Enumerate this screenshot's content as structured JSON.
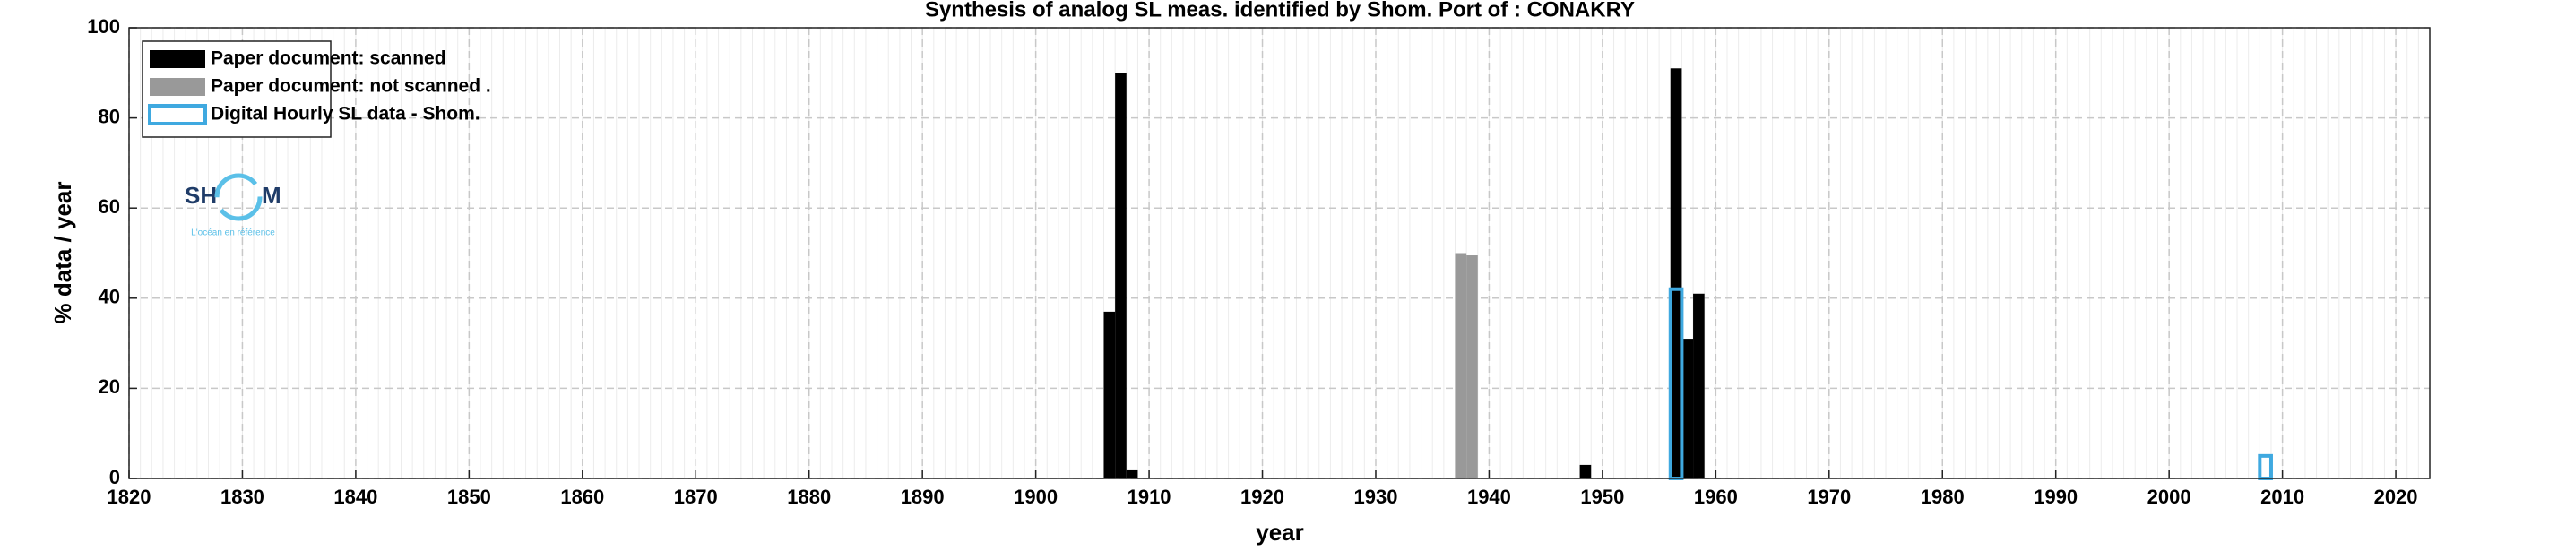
{
  "chart_data": {
    "type": "bar",
    "title": "Synthesis of analog SL meas. identified by Shom. Port of : CONAKRY",
    "x_label": "year",
    "y_label": "% data / year",
    "xlim": [
      1820,
      2023
    ],
    "xticks": [
      1820,
      1830,
      1840,
      1850,
      1860,
      1870,
      1880,
      1890,
      1900,
      1910,
      1920,
      1930,
      1940,
      1950,
      1960,
      1970,
      1980,
      1990,
      2000,
      2010,
      2020
    ],
    "ylim": [
      0,
      100
    ],
    "yticks": [
      0,
      20,
      40,
      60,
      80,
      100
    ],
    "grid": true,
    "minor_grid": true,
    "legend": "upper left",
    "series": [
      {
        "name": "Paper document: scanned",
        "color": "#000000",
        "x": [
          1906,
          1907,
          1908,
          1948,
          1956,
          1957,
          1958
        ],
        "values": [
          37,
          90,
          2,
          3,
          91,
          31,
          41
        ]
      },
      {
        "name": "Paper document: not scanned   .",
        "color": "#999999",
        "x": [
          1937,
          1938
        ],
        "values": [
          50,
          49.5
        ]
      },
      {
        "name": "Digital Hourly SL data - Shom.",
        "color": "#3fa9e0",
        "outline": true,
        "x": [
          1956,
          2008
        ],
        "values": [
          42,
          5
        ]
      }
    ]
  },
  "logo": {
    "left": "SH",
    "right": "M",
    "tagline": "L'océan en référence"
  }
}
